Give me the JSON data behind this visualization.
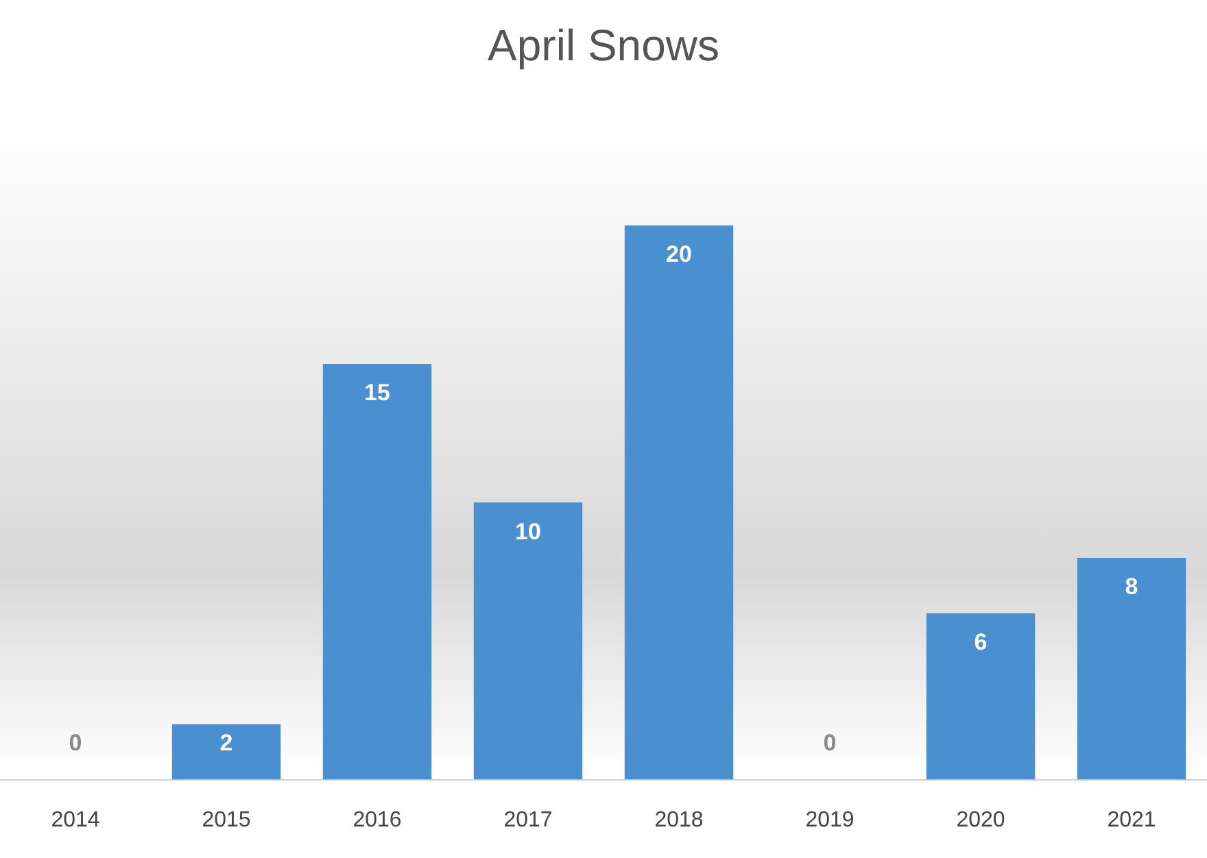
{
  "chart_data": {
    "type": "bar",
    "title": "April Snows",
    "categories": [
      "2014",
      "2015",
      "2016",
      "2017",
      "2018",
      "2019",
      "2020",
      "2021"
    ],
    "values": [
      0,
      2,
      15,
      10,
      20,
      0,
      6,
      8
    ],
    "color": "#4a8fd0",
    "data_labels": true,
    "grid": false,
    "legend": false
  }
}
